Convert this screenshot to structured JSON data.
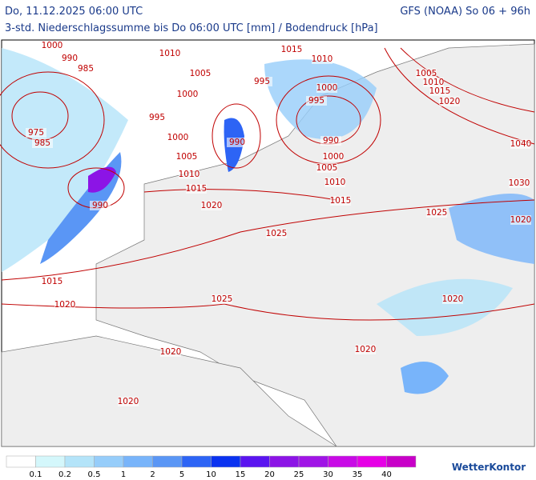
{
  "header": {
    "left": "Do, 11.12.2025 06:00 UTC",
    "right": "GFS (NOAA) So 06 + 96h",
    "subtitle": "3-std. Niederschlagssumme bis Do 06:00 UTC [mm] / Bodendruck [hPa]"
  },
  "isobar_labels": [
    "1000",
    "990",
    "985",
    "1010",
    "1015",
    "1010",
    "1005",
    "995",
    "1000",
    "995",
    "1000",
    "995",
    "1005",
    "1010",
    "1015",
    "1020",
    "975",
    "985",
    "1000",
    "990",
    "990",
    "1005",
    "1000",
    "1040",
    "1005",
    "1010",
    "1010",
    "1015",
    "1030",
    "990",
    "1020",
    "1015",
    "1025",
    "1020",
    "1025",
    "1015",
    "1025",
    "1020",
    "1020",
    "1020",
    "1020",
    "1020"
  ],
  "legend": {
    "values": [
      "0.1",
      "0.2",
      "0.5",
      "1",
      "2",
      "5",
      "10",
      "15",
      "20",
      "25",
      "30",
      "35",
      "40"
    ],
    "colors": [
      "#ffffff",
      "#d4f7fb",
      "#b4e4f9",
      "#96cdfa",
      "#78b4fa",
      "#5a96f5",
      "#2d64f5",
      "#0a32f0",
      "#5a14f0",
      "#8c14e6",
      "#a014e6",
      "#c80ae6",
      "#e600e6",
      "#c800c8"
    ]
  },
  "logo": "WetterKontor"
}
